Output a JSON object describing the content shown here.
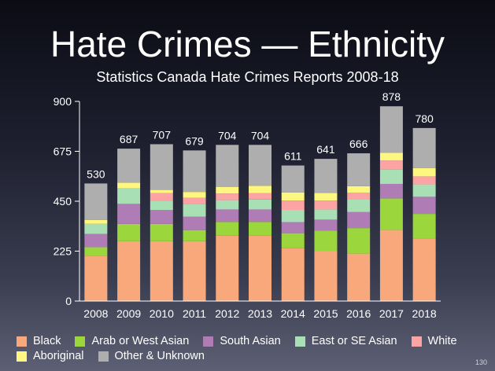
{
  "slide": {
    "title": "Hate Crimes — Ethnicity",
    "subtitle": "Statistics Canada Hate Crimes Reports 2008-18",
    "number": "130"
  },
  "chart_data": {
    "type": "bar",
    "stacked": true,
    "categories": [
      "2008",
      "2009",
      "2010",
      "2011",
      "2012",
      "2013",
      "2014",
      "2015",
      "2016",
      "2017",
      "2018"
    ],
    "totals": [
      530,
      687,
      707,
      679,
      704,
      704,
      611,
      641,
      666,
      878,
      780
    ],
    "ylim": [
      0,
      900
    ],
    "yticks": [
      0,
      225,
      450,
      675,
      900
    ],
    "grid": false,
    "legend_position": "bottom",
    "series": [
      {
        "name": "Black",
        "color": "#f9a87c",
        "values": [
          205,
          270,
          270,
          270,
          295,
          295,
          238,
          225,
          214,
          321,
          283
        ]
      },
      {
        "name": "Arab or West Asian",
        "color": "#9ad63c",
        "values": [
          38,
          78,
          78,
          50,
          62,
          62,
          68,
          92,
          115,
          142,
          110
        ]
      },
      {
        "name": "South Asian",
        "color": "#b07cb6",
        "values": [
          60,
          90,
          62,
          60,
          56,
          56,
          50,
          50,
          72,
          65,
          77
        ]
      },
      {
        "name": "East or SE Asian",
        "color": "#a8dfb4",
        "values": [
          45,
          70,
          42,
          58,
          42,
          45,
          55,
          46,
          58,
          64,
          56
        ]
      },
      {
        "name": "White",
        "color": "#fca4a4",
        "values": [
          0,
          0,
          35,
          27,
          30,
          28,
          42,
          40,
          30,
          42,
          36
        ]
      },
      {
        "name": "Aboriginal",
        "color": "#fdf67f",
        "values": [
          18,
          26,
          14,
          27,
          30,
          34,
          37,
          34,
          29,
          34,
          37
        ]
      },
      {
        "name": "Other & Unknown",
        "color": "#aeaeae",
        "values": [
          164,
          153,
          206,
          187,
          189,
          184,
          121,
          154,
          148,
          210,
          181
        ]
      }
    ]
  }
}
